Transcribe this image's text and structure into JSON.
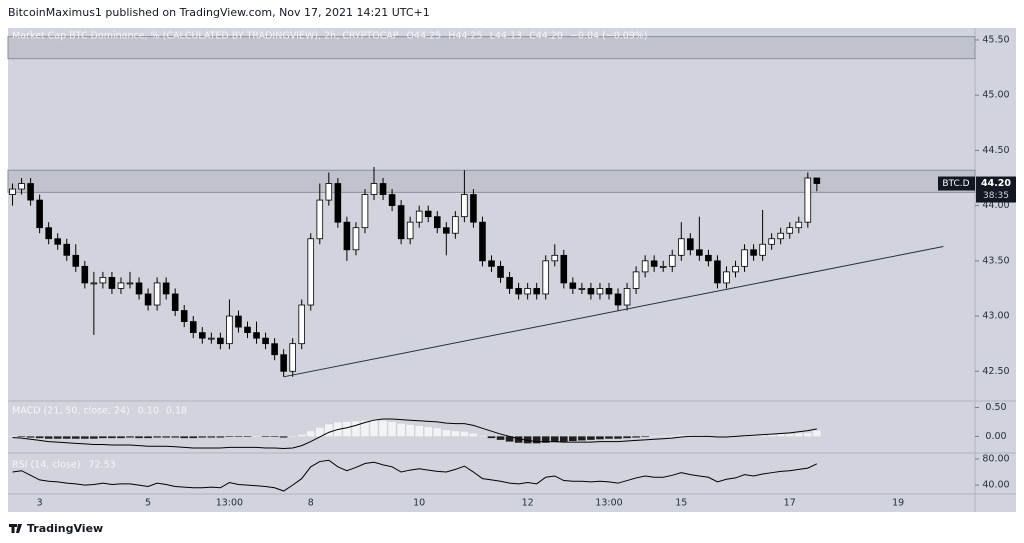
{
  "header": "BitcoinMaximus1 published on TradingView.com, Nov 17, 2021 14:21 UTC+1",
  "footer": "TradingView",
  "chart_data": {
    "type": "candlestick",
    "title": "Market Cap BTC Dominance, % (CALCULATED BY TRADINGVIEW), 2h, CRYPTOCAP",
    "readout": [
      "O44.25",
      "H44.25",
      "L44.13",
      "C44.20",
      "−0.04 (−0.09%)"
    ],
    "up_color": "#ffffff",
    "down_color": "#000000",
    "ylim": [
      42.24,
      45.59
    ],
    "yticks": [
      {
        "value": 42.5,
        "label": "42.50"
      },
      {
        "value": 43,
        "label": "43.00"
      },
      {
        "value": 43.5,
        "label": "43.50"
      },
      {
        "value": 44,
        "label": "44.00"
      },
      {
        "value": 44.5,
        "label": "44.50"
      },
      {
        "value": 45,
        "label": "45.00"
      },
      {
        "value": 45.5,
        "label": "45.50"
      }
    ],
    "zones": [
      [
        44.12,
        44.32
      ],
      [
        45.33,
        45.53
      ]
    ],
    "trendline": {
      "x": [
        30,
        103
      ],
      "y": [
        42.45,
        43.63
      ]
    },
    "price_label": {
      "symbol": "BTC.D",
      "price": "44.20",
      "countdown": "38:35"
    },
    "categories": [
      null,
      null,
      null,
      "3",
      null,
      null,
      null,
      null,
      null,
      null,
      null,
      null,
      null,
      null,
      null,
      "5",
      null,
      null,
      null,
      null,
      null,
      null,
      null,
      null,
      "13:00",
      null,
      null,
      null,
      null,
      null,
      null,
      null,
      null,
      "8",
      null,
      null,
      null,
      null,
      null,
      null,
      null,
      null,
      null,
      null,
      null,
      "10",
      null,
      null,
      null,
      null,
      null,
      null,
      null,
      null,
      null,
      null,
      null,
      "12",
      null,
      null,
      null,
      null,
      null,
      null,
      null,
      null,
      "13:00",
      null,
      null,
      null,
      null,
      null,
      null,
      null,
      "15",
      null,
      null,
      null,
      null,
      null,
      null,
      null,
      null,
      null,
      null,
      null,
      "17",
      null,
      null,
      null,
      null,
      null,
      null,
      null,
      null,
      null,
      null,
      null,
      "19",
      null,
      null,
      null,
      null,
      null,
      null,
      null,
      null
    ],
    "ohlc": [
      [
        44.1,
        44.2,
        44.0,
        44.15
      ],
      [
        44.15,
        44.25,
        44.1,
        44.2
      ],
      [
        44.2,
        44.25,
        44.0,
        44.05
      ],
      [
        44.05,
        44.1,
        43.75,
        43.8
      ],
      [
        43.8,
        43.85,
        43.65,
        43.7
      ],
      [
        43.7,
        43.75,
        43.6,
        43.65
      ],
      [
        43.65,
        43.7,
        43.5,
        43.55
      ],
      [
        43.55,
        43.65,
        43.4,
        43.45
      ],
      [
        43.45,
        43.5,
        43.25,
        43.3
      ],
      [
        43.3,
        43.4,
        42.83,
        43.3
      ],
      [
        43.3,
        43.4,
        43.25,
        43.35
      ],
      [
        43.35,
        43.4,
        43.2,
        43.25
      ],
      [
        43.25,
        43.35,
        43.2,
        43.3
      ],
      [
        43.3,
        43.4,
        43.25,
        43.3
      ],
      [
        43.3,
        43.35,
        43.15,
        43.2
      ],
      [
        43.2,
        43.25,
        43.05,
        43.1
      ],
      [
        43.1,
        43.35,
        43.05,
        43.3
      ],
      [
        43.3,
        43.35,
        43.15,
        43.2
      ],
      [
        43.2,
        43.25,
        43.0,
        43.05
      ],
      [
        43.05,
        43.1,
        42.9,
        42.95
      ],
      [
        42.95,
        43.0,
        42.8,
        42.85
      ],
      [
        42.85,
        42.9,
        42.75,
        42.8
      ],
      [
        42.8,
        42.85,
        42.75,
        42.8
      ],
      [
        42.8,
        42.85,
        42.7,
        42.75
      ],
      [
        42.75,
        43.15,
        42.7,
        43.0
      ],
      [
        43.0,
        43.05,
        42.85,
        42.9
      ],
      [
        42.9,
        42.95,
        42.8,
        42.85
      ],
      [
        42.85,
        42.95,
        42.75,
        42.8
      ],
      [
        42.8,
        42.85,
        42.7,
        42.75
      ],
      [
        42.75,
        42.8,
        42.6,
        42.65
      ],
      [
        42.65,
        42.7,
        42.45,
        42.5
      ],
      [
        42.5,
        42.8,
        42.45,
        42.75
      ],
      [
        42.75,
        43.15,
        42.7,
        43.1
      ],
      [
        43.1,
        43.75,
        43.05,
        43.7
      ],
      [
        43.7,
        44.2,
        43.65,
        44.05
      ],
      [
        44.05,
        44.3,
        44.0,
        44.2
      ],
      [
        44.2,
        44.25,
        43.8,
        43.85
      ],
      [
        43.85,
        43.9,
        43.5,
        43.6
      ],
      [
        43.6,
        43.85,
        43.55,
        43.8
      ],
      [
        43.8,
        44.15,
        43.75,
        44.1
      ],
      [
        44.1,
        44.35,
        44.05,
        44.2
      ],
      [
        44.2,
        44.25,
        44.05,
        44.1
      ],
      [
        44.1,
        44.15,
        43.95,
        44.0
      ],
      [
        44.0,
        44.05,
        43.65,
        43.7
      ],
      [
        43.7,
        43.9,
        43.65,
        43.85
      ],
      [
        43.85,
        44.0,
        43.8,
        43.95
      ],
      [
        43.95,
        44.0,
        43.85,
        43.9
      ],
      [
        43.9,
        43.95,
        43.75,
        43.8
      ],
      [
        43.8,
        43.85,
        43.55,
        43.75
      ],
      [
        43.75,
        43.95,
        43.7,
        43.9
      ],
      [
        43.9,
        44.32,
        43.85,
        44.1
      ],
      [
        44.1,
        44.15,
        43.8,
        43.85
      ],
      [
        43.85,
        43.9,
        43.45,
        43.5
      ],
      [
        43.5,
        43.55,
        43.4,
        43.45
      ],
      [
        43.45,
        43.5,
        43.3,
        43.35
      ],
      [
        43.35,
        43.4,
        43.2,
        43.25
      ],
      [
        43.25,
        43.3,
        43.15,
        43.2
      ],
      [
        43.2,
        43.3,
        43.15,
        43.25
      ],
      [
        43.25,
        43.3,
        43.15,
        43.2
      ],
      [
        43.2,
        43.55,
        43.15,
        43.5
      ],
      [
        43.5,
        43.65,
        43.45,
        43.55
      ],
      [
        43.55,
        43.6,
        43.25,
        43.3
      ],
      [
        43.3,
        43.35,
        43.2,
        43.25
      ],
      [
        43.25,
        43.3,
        43.2,
        43.25
      ],
      [
        43.25,
        43.3,
        43.15,
        43.2
      ],
      [
        43.2,
        43.3,
        43.15,
        43.25
      ],
      [
        43.25,
        43.3,
        43.15,
        43.2
      ],
      [
        43.2,
        43.25,
        43.05,
        43.1
      ],
      [
        43.1,
        43.3,
        43.05,
        43.25
      ],
      [
        43.25,
        43.45,
        43.2,
        43.4
      ],
      [
        43.4,
        43.55,
        43.35,
        43.5
      ],
      [
        43.5,
        43.55,
        43.4,
        43.45
      ],
      [
        43.45,
        43.5,
        43.4,
        43.45
      ],
      [
        43.45,
        43.6,
        43.4,
        43.55
      ],
      [
        43.55,
        43.85,
        43.5,
        43.7
      ],
      [
        43.7,
        43.75,
        43.55,
        43.6
      ],
      [
        43.6,
        43.9,
        43.5,
        43.55
      ],
      [
        43.55,
        43.6,
        43.45,
        43.5
      ],
      [
        43.5,
        43.55,
        43.25,
        43.3
      ],
      [
        43.3,
        43.45,
        43.25,
        43.4
      ],
      [
        43.4,
        43.5,
        43.35,
        43.45
      ],
      [
        43.45,
        43.65,
        43.4,
        43.6
      ],
      [
        43.6,
        43.65,
        43.5,
        43.55
      ],
      [
        43.55,
        43.96,
        43.5,
        43.65
      ],
      [
        43.65,
        43.75,
        43.6,
        43.7
      ],
      [
        43.7,
        43.8,
        43.65,
        43.75
      ],
      [
        43.75,
        43.85,
        43.7,
        43.8
      ],
      [
        43.8,
        43.9,
        43.75,
        43.85
      ],
      [
        43.85,
        44.3,
        43.8,
        44.25
      ],
      [
        44.25,
        44.25,
        44.13,
        44.2
      ],
      null,
      null,
      null,
      null,
      null,
      null,
      null,
      null,
      null,
      null,
      null,
      null,
      null,
      null,
      null,
      null,
      null
    ],
    "indicators": [
      {
        "type": "macd",
        "title": "MACD (21, 50, close, 24)",
        "readout": [
          "0.10",
          "0.18"
        ],
        "ylim": [
          -0.27,
          0.56
        ],
        "yticks": [
          {
            "value": 0,
            "label": "0.00"
          },
          {
            "value": 0.5,
            "label": "0.50"
          }
        ],
        "hist_up_color": "#f2f3f5",
        "hist_down_color": "#1e1e1e",
        "line_color": "#000000",
        "histogram": [
          0,
          -0.01,
          -0.02,
          -0.03,
          -0.04,
          -0.04,
          -0.04,
          -0.04,
          -0.04,
          -0.04,
          -0.03,
          -0.03,
          -0.03,
          -0.02,
          -0.03,
          -0.03,
          -0.02,
          -0.02,
          -0.02,
          -0.03,
          -0.03,
          -0.02,
          -0.02,
          -0.02,
          -0.01,
          -0.01,
          -0.01,
          0,
          -0.01,
          -0.01,
          -0.02,
          0,
          0.03,
          0.09,
          0.15,
          0.21,
          0.24,
          0.25,
          0.26,
          0.27,
          0.28,
          0.27,
          0.25,
          0.22,
          0.2,
          0.18,
          0.16,
          0.14,
          0.11,
          0.09,
          0.08,
          0.05,
          0.01,
          -0.03,
          -0.06,
          -0.09,
          -0.11,
          -0.12,
          -0.12,
          -0.11,
          -0.1,
          -0.09,
          -0.08,
          -0.07,
          -0.06,
          -0.05,
          -0.04,
          -0.04,
          -0.03,
          -0.02,
          -0.01,
          0,
          0.01,
          0.01,
          0.02,
          0.02,
          0.02,
          0.01,
          0,
          0,
          0.01,
          0.01,
          0.02,
          0.02,
          0.03,
          0.04,
          0.04,
          0.05,
          0.06,
          0.1,
          null,
          null,
          null,
          null,
          null,
          null,
          null,
          null,
          null,
          null,
          null,
          null,
          null,
          null,
          null,
          null,
          null
        ],
        "line": [
          -0.02,
          -0.03,
          -0.05,
          -0.07,
          -0.09,
          -0.1,
          -0.11,
          -0.12,
          -0.13,
          -0.14,
          -0.14,
          -0.15,
          -0.15,
          -0.15,
          -0.16,
          -0.17,
          -0.17,
          -0.17,
          -0.18,
          -0.19,
          -0.2,
          -0.2,
          -0.2,
          -0.2,
          -0.19,
          -0.19,
          -0.19,
          -0.19,
          -0.2,
          -0.2,
          -0.21,
          -0.2,
          -0.16,
          -0.09,
          -0.01,
          0.07,
          0.12,
          0.15,
          0.19,
          0.24,
          0.28,
          0.3,
          0.3,
          0.29,
          0.28,
          0.27,
          0.26,
          0.25,
          0.23,
          0.22,
          0.22,
          0.19,
          0.14,
          0.09,
          0.04,
          0,
          -0.04,
          -0.07,
          -0.09,
          -0.09,
          -0.09,
          -0.1,
          -0.1,
          -0.1,
          -0.1,
          -0.09,
          -0.09,
          -0.09,
          -0.08,
          -0.07,
          -0.06,
          -0.05,
          -0.04,
          -0.03,
          -0.01,
          0,
          0,
          0,
          -0.01,
          -0.01,
          0,
          0.01,
          0.02,
          0.03,
          0.04,
          0.05,
          0.06,
          0.08,
          0.1,
          0.13,
          null,
          null,
          null,
          null,
          null,
          null,
          null,
          null,
          null,
          null,
          null,
          null,
          null,
          null,
          null,
          null,
          null
        ]
      },
      {
        "type": "rsi",
        "title": "RSI (14, close)",
        "readout": [
          "72.53"
        ],
        "ylim": [
          28,
          86
        ],
        "yticks": [
          {
            "value": 80,
            "label": "80.00"
          },
          {
            "value": 40,
            "label": "40.00"
          }
        ],
        "line_color": "#000000",
        "values": [
          60,
          62,
          55,
          48,
          46,
          45,
          43,
          42,
          40,
          41,
          43,
          41,
          42,
          42,
          40,
          38,
          43,
          41,
          38,
          37,
          36,
          36,
          37,
          36,
          44,
          41,
          40,
          39,
          38,
          36,
          31,
          40,
          50,
          68,
          76,
          78,
          68,
          62,
          67,
          73,
          75,
          71,
          68,
          60,
          63,
          65,
          63,
          61,
          60,
          64,
          69,
          60,
          50,
          48,
          46,
          43,
          42,
          44,
          42,
          52,
          54,
          47,
          46,
          46,
          45,
          46,
          45,
          43,
          47,
          51,
          54,
          52,
          52,
          55,
          59,
          56,
          54,
          52,
          45,
          49,
          51,
          56,
          54,
          57,
          59,
          61,
          62,
          64,
          66,
          72.53,
          null,
          null,
          null,
          null,
          null,
          null,
          null,
          null,
          null,
          null,
          null,
          null,
          null,
          null,
          null,
          null,
          null
        ]
      }
    ]
  }
}
